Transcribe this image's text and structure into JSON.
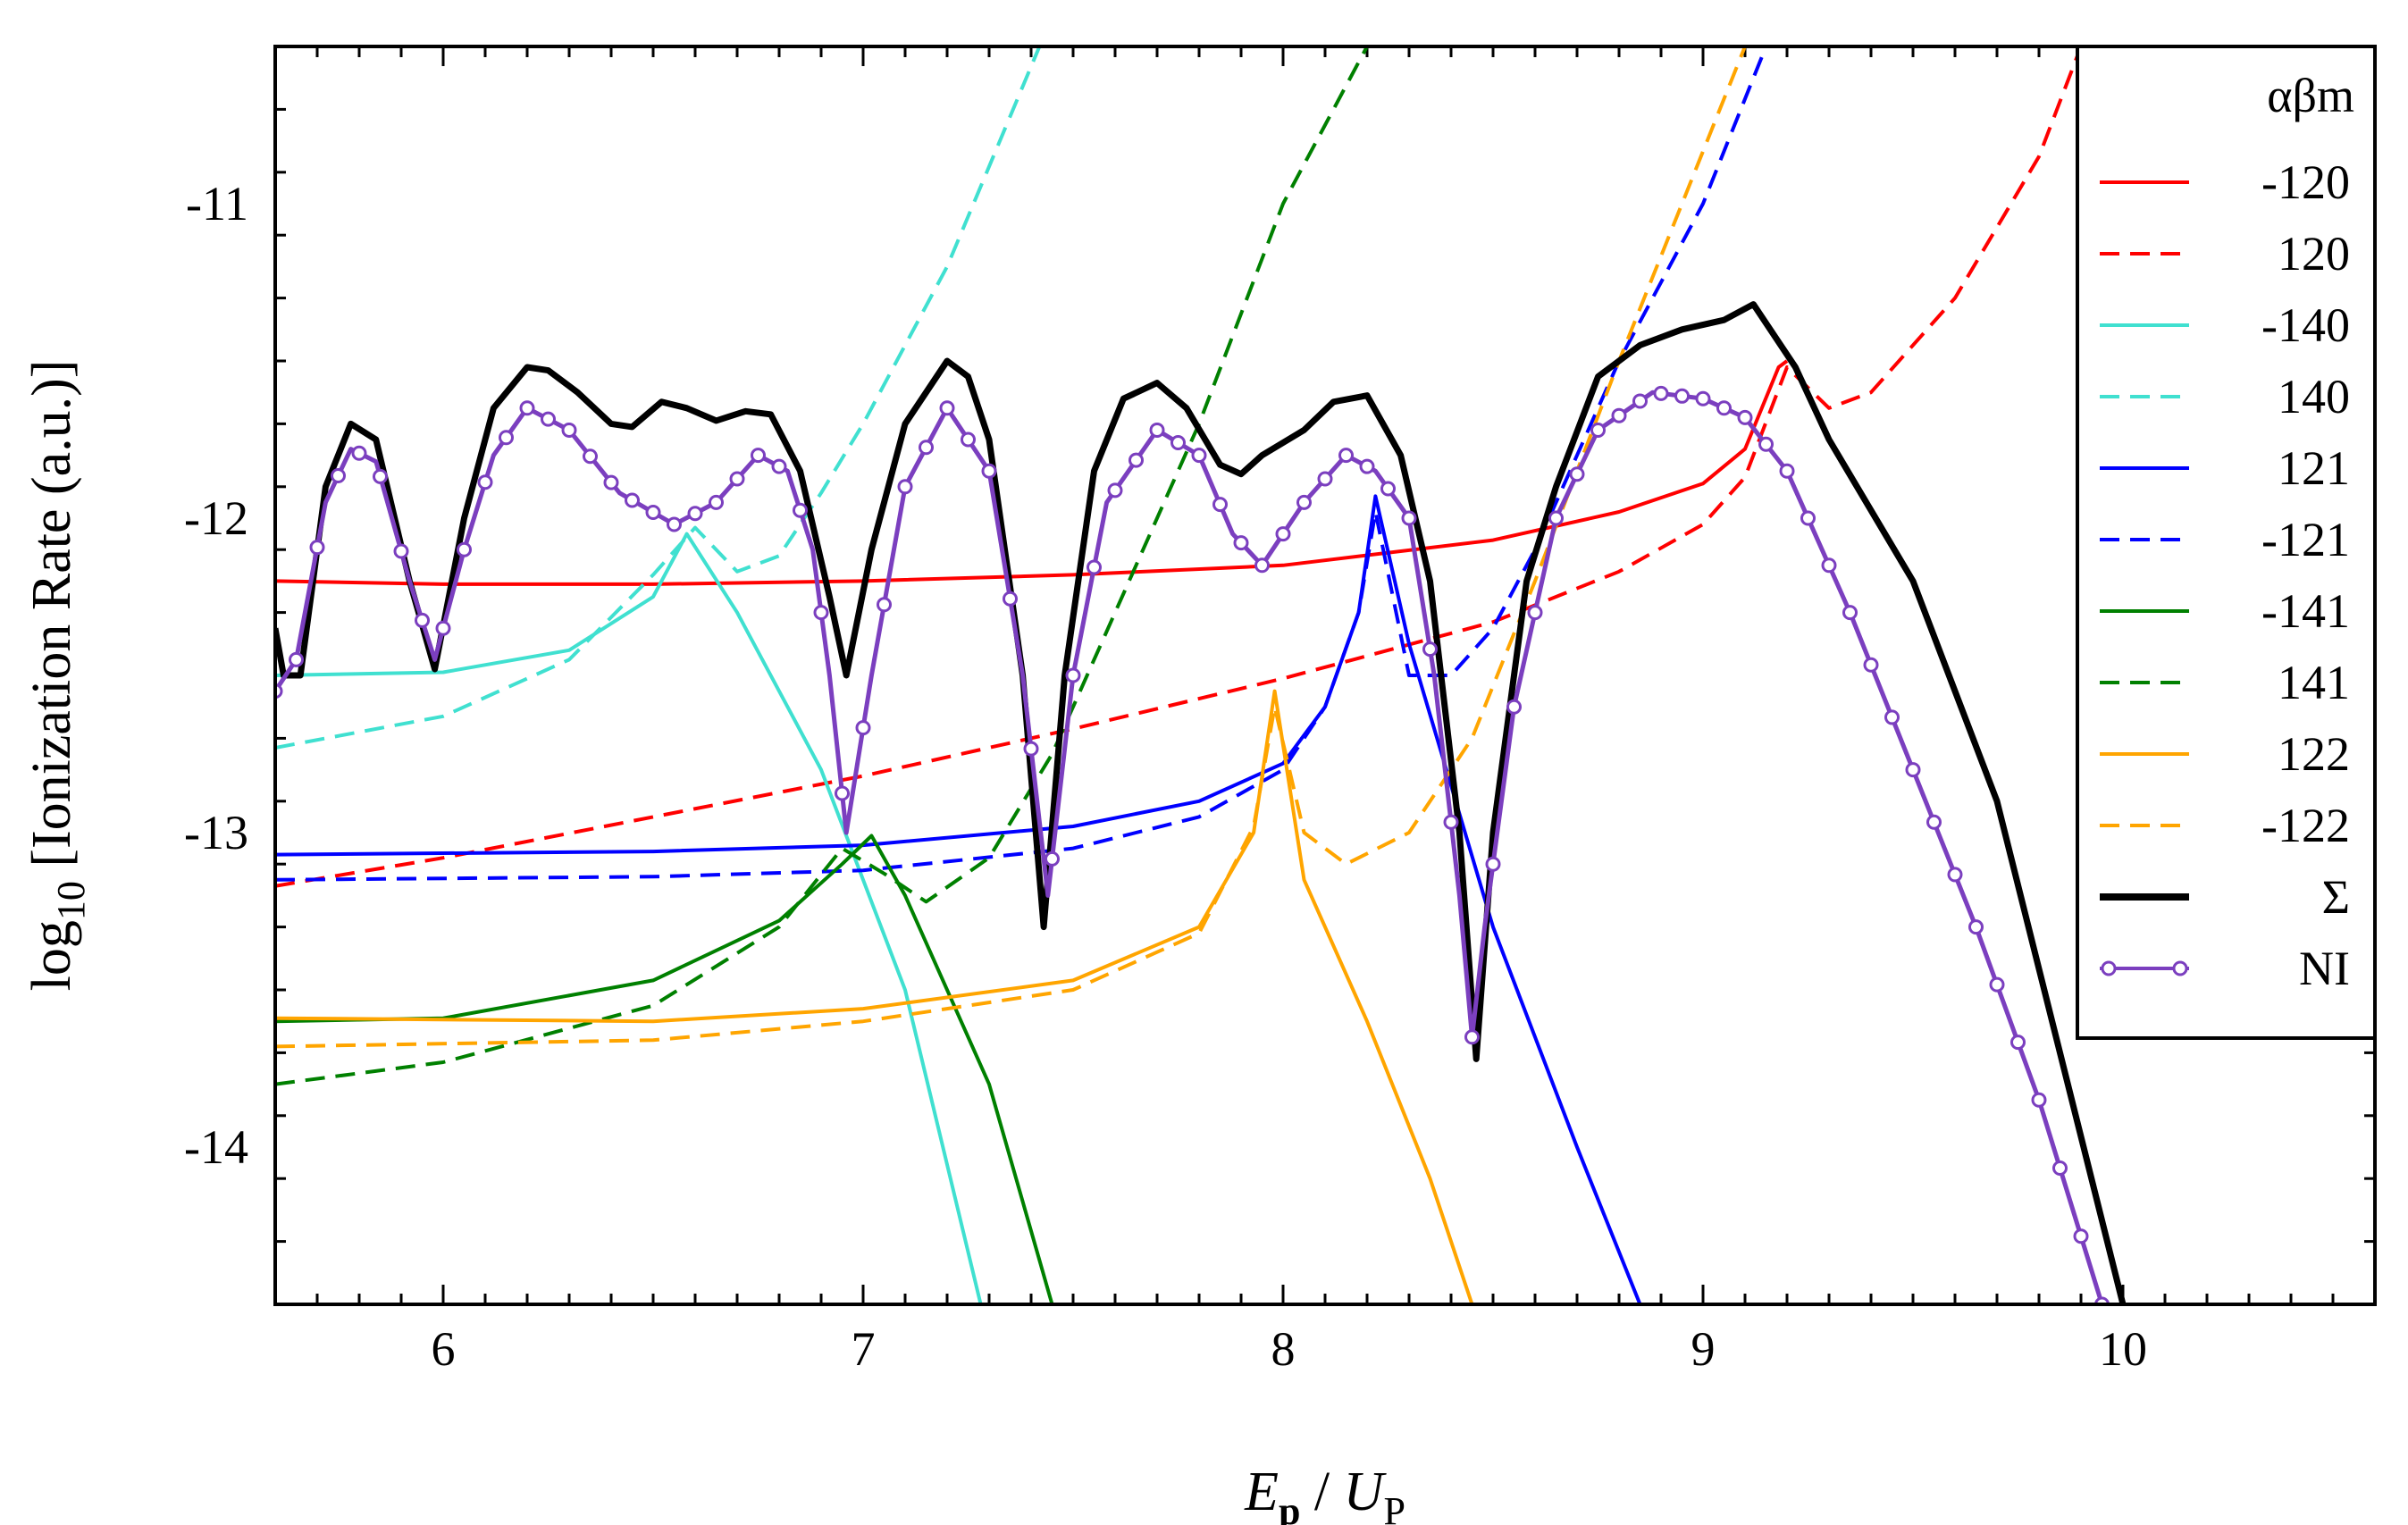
{
  "chart_data": {
    "type": "line",
    "xlabel": {
      "main": "E",
      "sub": "p",
      "sep": " / ",
      "main2": "U",
      "sub2": "P"
    },
    "ylabel": {
      "prefix": "log",
      "sub": "10",
      "rest": " [Ionization Rate (a.u.)]"
    },
    "xlim": [
      5.6,
      10.6
    ],
    "ylim": [
      -14.5,
      -10.5
    ],
    "xticks": [
      6,
      7,
      8,
      9,
      10
    ],
    "xtick_labels": [
      "6",
      "7",
      "8",
      "9",
      "10"
    ],
    "yticks": [
      -14,
      -13,
      -12,
      -11
    ],
    "ytick_labels": [
      "-14",
      "-13",
      "-12",
      "-11"
    ],
    "legend_title": "αβm",
    "legend_position": "top-right",
    "series": [
      {
        "name": "-120",
        "color": "#ff0000",
        "dash": "solid",
        "marker": false,
        "points": [
          [
            5.6,
            -12.2
          ],
          [
            6.0,
            -12.21
          ],
          [
            6.5,
            -12.21
          ],
          [
            7.0,
            -12.2
          ],
          [
            7.5,
            -12.18
          ],
          [
            8.0,
            -12.15
          ],
          [
            8.5,
            -12.07
          ],
          [
            8.8,
            -11.98
          ],
          [
            9.0,
            -11.89
          ],
          [
            9.1,
            -11.78
          ],
          [
            9.18,
            -11.52
          ],
          [
            9.2,
            -11.5
          ]
        ]
      },
      {
        "name": "120",
        "color": "#ff0000",
        "dash": "dashed",
        "marker": false,
        "points": [
          [
            5.6,
            -13.17
          ],
          [
            6.0,
            -13.08
          ],
          [
            6.5,
            -12.95
          ],
          [
            7.0,
            -12.82
          ],
          [
            7.5,
            -12.67
          ],
          [
            8.0,
            -12.51
          ],
          [
            8.5,
            -12.33
          ],
          [
            8.8,
            -12.17
          ],
          [
            9.0,
            -12.02
          ],
          [
            9.1,
            -11.87
          ],
          [
            9.2,
            -11.52
          ],
          [
            9.3,
            -11.65
          ],
          [
            9.4,
            -11.6
          ],
          [
            9.6,
            -11.3
          ],
          [
            9.8,
            -10.85
          ],
          [
            9.9,
            -10.5
          ]
        ]
      },
      {
        "name": "-140",
        "color": "#40e0d0",
        "dash": "solid",
        "marker": false,
        "points": [
          [
            5.6,
            -12.5
          ],
          [
            6.0,
            -12.49
          ],
          [
            6.3,
            -12.42
          ],
          [
            6.5,
            -12.25
          ],
          [
            6.58,
            -12.05
          ],
          [
            6.7,
            -12.3
          ],
          [
            6.9,
            -12.8
          ],
          [
            7.1,
            -13.5
          ],
          [
            7.28,
            -14.5
          ]
        ]
      },
      {
        "name": "140",
        "color": "#40e0d0",
        "dash": "dashed",
        "marker": false,
        "points": [
          [
            5.6,
            -12.73
          ],
          [
            6.0,
            -12.63
          ],
          [
            6.3,
            -12.45
          ],
          [
            6.5,
            -12.18
          ],
          [
            6.6,
            -12.03
          ],
          [
            6.7,
            -12.17
          ],
          [
            6.8,
            -12.12
          ],
          [
            6.9,
            -11.92
          ],
          [
            7.0,
            -11.7
          ],
          [
            7.2,
            -11.2
          ],
          [
            7.42,
            -10.5
          ]
        ]
      },
      {
        "name": "121",
        "color": "#0000ff",
        "dash": "solid",
        "marker": false,
        "points": [
          [
            5.6,
            -13.07
          ],
          [
            6.5,
            -13.06
          ],
          [
            7.0,
            -13.04
          ],
          [
            7.5,
            -12.98
          ],
          [
            7.8,
            -12.9
          ],
          [
            8.0,
            -12.78
          ],
          [
            8.1,
            -12.6
          ],
          [
            8.18,
            -12.3
          ],
          [
            8.22,
            -11.93
          ],
          [
            8.3,
            -12.4
          ],
          [
            8.5,
            -13.3
          ],
          [
            8.7,
            -14.0
          ],
          [
            8.85,
            -14.5
          ]
        ]
      },
      {
        "name": "-121",
        "color": "#0000ff",
        "dash": "dashed",
        "marker": false,
        "points": [
          [
            5.6,
            -13.15
          ],
          [
            6.5,
            -13.14
          ],
          [
            7.0,
            -13.12
          ],
          [
            7.5,
            -13.05
          ],
          [
            7.8,
            -12.95
          ],
          [
            8.0,
            -12.8
          ],
          [
            8.1,
            -12.6
          ],
          [
            8.18,
            -12.3
          ],
          [
            8.22,
            -11.98
          ],
          [
            8.3,
            -12.5
          ],
          [
            8.4,
            -12.5
          ],
          [
            8.5,
            -12.35
          ],
          [
            8.6,
            -12.1
          ],
          [
            8.8,
            -11.5
          ],
          [
            9.0,
            -11.0
          ],
          [
            9.15,
            -10.5
          ]
        ]
      },
      {
        "name": "-141",
        "color": "#008000",
        "dash": "solid",
        "marker": false,
        "points": [
          [
            5.6,
            -13.6
          ],
          [
            6.0,
            -13.59
          ],
          [
            6.5,
            -13.47
          ],
          [
            6.8,
            -13.28
          ],
          [
            6.95,
            -13.1
          ],
          [
            7.02,
            -13.01
          ],
          [
            7.1,
            -13.2
          ],
          [
            7.3,
            -13.8
          ],
          [
            7.45,
            -14.5
          ]
        ]
      },
      {
        "name": "141",
        "color": "#008000",
        "dash": "dashed",
        "marker": false,
        "points": [
          [
            5.6,
            -13.8
          ],
          [
            6.0,
            -13.73
          ],
          [
            6.5,
            -13.55
          ],
          [
            6.8,
            -13.3
          ],
          [
            6.95,
            -13.05
          ],
          [
            7.05,
            -13.13
          ],
          [
            7.15,
            -13.22
          ],
          [
            7.3,
            -13.08
          ],
          [
            7.45,
            -12.75
          ],
          [
            7.6,
            -12.3
          ],
          [
            7.8,
            -11.7
          ],
          [
            8.0,
            -11.0
          ],
          [
            8.2,
            -10.5
          ]
        ]
      },
      {
        "name": "122",
        "color": "#ffa500",
        "dash": "solid",
        "marker": false,
        "points": [
          [
            5.6,
            -13.59
          ],
          [
            6.5,
            -13.6
          ],
          [
            7.0,
            -13.56
          ],
          [
            7.5,
            -13.47
          ],
          [
            7.8,
            -13.3
          ],
          [
            7.93,
            -13.0
          ],
          [
            7.98,
            -12.55
          ],
          [
            8.05,
            -13.15
          ],
          [
            8.2,
            -13.6
          ],
          [
            8.35,
            -14.1
          ],
          [
            8.45,
            -14.5
          ]
        ]
      },
      {
        "name": "-122",
        "color": "#ffa500",
        "dash": "dashed",
        "marker": false,
        "points": [
          [
            5.6,
            -13.68
          ],
          [
            6.5,
            -13.66
          ],
          [
            7.0,
            -13.6
          ],
          [
            7.5,
            -13.5
          ],
          [
            7.8,
            -13.32
          ],
          [
            7.93,
            -12.98
          ],
          [
            7.98,
            -12.6
          ],
          [
            8.05,
            -13.0
          ],
          [
            8.15,
            -13.1
          ],
          [
            8.3,
            -13.0
          ],
          [
            8.45,
            -12.7
          ],
          [
            8.6,
            -12.2
          ],
          [
            8.8,
            -11.5
          ],
          [
            8.95,
            -11.0
          ],
          [
            9.1,
            -10.5
          ]
        ]
      },
      {
        "name": "Σ",
        "color": "#000000",
        "dash": "solid",
        "marker": false,
        "points": [
          [
            5.6,
            -12.35
          ],
          [
            5.62,
            -12.5
          ],
          [
            5.66,
            -12.5
          ],
          [
            5.72,
            -11.9
          ],
          [
            5.78,
            -11.7
          ],
          [
            5.84,
            -11.75
          ],
          [
            5.92,
            -12.2
          ],
          [
            5.98,
            -12.48
          ],
          [
            6.05,
            -12.0
          ],
          [
            6.12,
            -11.65
          ],
          [
            6.2,
            -11.52
          ],
          [
            6.25,
            -11.53
          ],
          [
            6.32,
            -11.6
          ],
          [
            6.4,
            -11.7
          ],
          [
            6.45,
            -11.71
          ],
          [
            6.52,
            -11.63
          ],
          [
            6.58,
            -11.65
          ],
          [
            6.65,
            -11.69
          ],
          [
            6.72,
            -11.66
          ],
          [
            6.78,
            -11.67
          ],
          [
            6.85,
            -11.85
          ],
          [
            6.92,
            -12.25
          ],
          [
            6.96,
            -12.5
          ],
          [
            7.02,
            -12.1
          ],
          [
            7.1,
            -11.7
          ],
          [
            7.2,
            -11.5
          ],
          [
            7.25,
            -11.55
          ],
          [
            7.3,
            -11.75
          ],
          [
            7.38,
            -12.5
          ],
          [
            7.43,
            -13.3
          ],
          [
            7.48,
            -12.5
          ],
          [
            7.55,
            -11.85
          ],
          [
            7.62,
            -11.62
          ],
          [
            7.7,
            -11.57
          ],
          [
            7.77,
            -11.65
          ],
          [
            7.85,
            -11.83
          ],
          [
            7.9,
            -11.86
          ],
          [
            7.95,
            -11.8
          ],
          [
            8.05,
            -11.72
          ],
          [
            8.12,
            -11.63
          ],
          [
            8.2,
            -11.61
          ],
          [
            8.28,
            -11.8
          ],
          [
            8.35,
            -12.2
          ],
          [
            8.42,
            -13.0
          ],
          [
            8.46,
            -13.72
          ],
          [
            8.5,
            -13.0
          ],
          [
            8.58,
            -12.2
          ],
          [
            8.65,
            -11.9
          ],
          [
            8.75,
            -11.55
          ],
          [
            8.85,
            -11.45
          ],
          [
            8.95,
            -11.4
          ],
          [
            9.05,
            -11.37
          ],
          [
            9.12,
            -11.32
          ],
          [
            9.22,
            -11.52
          ],
          [
            9.3,
            -11.75
          ],
          [
            9.5,
            -12.2
          ],
          [
            9.7,
            -12.9
          ],
          [
            9.85,
            -13.7
          ],
          [
            10.0,
            -14.5
          ]
        ]
      },
      {
        "name": "NI",
        "color": "#7b3fbf",
        "dash": "solid",
        "marker": true,
        "points": [
          [
            5.6,
            -12.55
          ],
          [
            5.65,
            -12.45
          ],
          [
            5.72,
            -11.95
          ],
          [
            5.78,
            -11.78
          ],
          [
            5.84,
            -11.82
          ],
          [
            5.92,
            -12.2
          ],
          [
            5.98,
            -12.45
          ],
          [
            6.05,
            -12.1
          ],
          [
            6.12,
            -11.8
          ],
          [
            6.2,
            -11.65
          ],
          [
            6.3,
            -11.72
          ],
          [
            6.42,
            -11.92
          ],
          [
            6.55,
            -12.02
          ],
          [
            6.65,
            -11.95
          ],
          [
            6.75,
            -11.8
          ],
          [
            6.82,
            -11.85
          ],
          [
            6.88,
            -12.1
          ],
          [
            6.92,
            -12.5
          ],
          [
            6.96,
            -13.0
          ],
          [
            7.02,
            -12.5
          ],
          [
            7.1,
            -11.9
          ],
          [
            7.2,
            -11.65
          ],
          [
            7.3,
            -11.85
          ],
          [
            7.38,
            -12.5
          ],
          [
            7.44,
            -13.2
          ],
          [
            7.5,
            -12.5
          ],
          [
            7.58,
            -11.95
          ],
          [
            7.7,
            -11.72
          ],
          [
            7.8,
            -11.8
          ],
          [
            7.88,
            -12.05
          ],
          [
            7.95,
            -12.15
          ],
          [
            8.05,
            -11.95
          ],
          [
            8.15,
            -11.8
          ],
          [
            8.22,
            -11.85
          ],
          [
            8.3,
            -12.0
          ],
          [
            8.36,
            -12.5
          ],
          [
            8.42,
            -13.2
          ],
          [
            8.45,
            -13.65
          ],
          [
            8.48,
            -13.3
          ],
          [
            8.55,
            -12.6
          ],
          [
            8.65,
            -12.0
          ],
          [
            8.75,
            -11.72
          ],
          [
            8.88,
            -11.6
          ],
          [
            9.0,
            -11.62
          ],
          [
            9.1,
            -11.68
          ],
          [
            9.2,
            -11.85
          ],
          [
            9.35,
            -12.3
          ],
          [
            9.5,
            -12.8
          ],
          [
            9.65,
            -13.3
          ],
          [
            9.8,
            -13.85
          ],
          [
            9.95,
            -14.5
          ]
        ]
      }
    ]
  }
}
